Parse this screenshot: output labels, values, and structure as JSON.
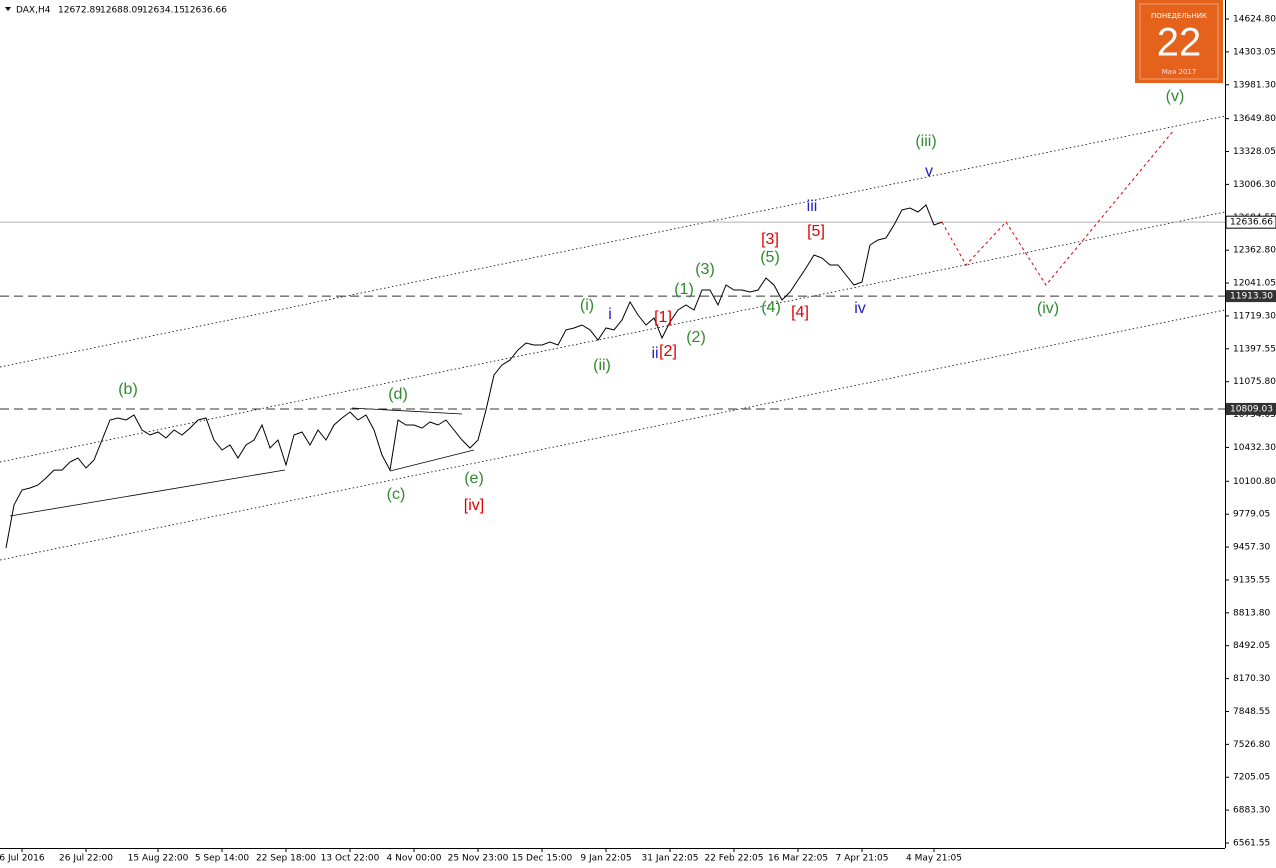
{
  "chart_data": {
    "type": "line",
    "header": {
      "symbol": "DAX,H4",
      "open": 12672.89,
      "high": 12688.09,
      "low": 12634.15,
      "close": 12636.66
    },
    "categories": [
      null,
      null,
      "6 Jul 2016",
      null,
      null,
      null,
      null,
      null,
      null,
      null,
      "26 Jul 22:00",
      null,
      null,
      null,
      null,
      null,
      null,
      null,
      null,
      "15 Aug 22:00",
      null,
      null,
      null,
      null,
      null,
      null,
      null,
      "5 Sep 14:00",
      null,
      null,
      null,
      null,
      null,
      null,
      null,
      "22 Sep 18:00",
      null,
      null,
      null,
      null,
      null,
      null,
      null,
      "13 Oct 22:00",
      null,
      null,
      null,
      null,
      null,
      null,
      null,
      "4 Nov 00:00",
      null,
      null,
      null,
      null,
      null,
      null,
      null,
      "25 Nov 23:00",
      null,
      null,
      null,
      null,
      null,
      null,
      null,
      "15 Dec 15:00",
      null,
      null,
      null,
      null,
      null,
      null,
      null,
      "9 Jan 22:05",
      null,
      null,
      null,
      null,
      null,
      null,
      null,
      "31 Jan 22:05",
      null,
      null,
      null,
      null,
      null,
      null,
      null,
      "22 Feb 22:05",
      null,
      null,
      null,
      null,
      null,
      null,
      null,
      "16 Mar 22:05",
      null,
      null,
      null,
      null,
      null,
      null,
      null,
      "7 Apr 21:05",
      null,
      null,
      null,
      null,
      null,
      null,
      null,
      null,
      "4 May 21:05",
      null
    ],
    "series": [
      {
        "color": "#000000",
        "values": [
          9448,
          9869,
          10016,
          10035,
          10065,
          10133,
          10211,
          10211,
          10290,
          10329,
          10231,
          10309,
          10505,
          10701,
          10720,
          10701,
          10750,
          10603,
          10554,
          10583,
          10525,
          10603,
          10554,
          10622,
          10701,
          10720,
          10505,
          10407,
          10456,
          10329,
          10456,
          10505,
          10652,
          10427,
          10505,
          10260,
          10554,
          10583,
          10456,
          10603,
          10505,
          10652,
          10720,
          10779,
          10701,
          10750,
          10603,
          10358,
          10211,
          10701,
          10652,
          10652,
          10622,
          10681,
          10652,
          10701,
          10603,
          10505,
          10427,
          10505,
          10799,
          11141,
          11239,
          11288,
          11386,
          11454,
          11435,
          11435,
          11464,
          11435,
          11582,
          11601,
          11630,
          11582,
          11484,
          11601,
          11582,
          11679,
          11856,
          11728,
          11630,
          11699,
          11503,
          11660,
          11777,
          11826,
          11777,
          11973,
          11973,
          11826,
          12022,
          11973,
          11973,
          11953,
          11973,
          12090,
          12022,
          11875,
          11953,
          12071,
          12188,
          12315,
          12286,
          12218,
          12218,
          12120,
          12022,
          12051,
          12413,
          12462,
          12482,
          12609,
          12757,
          12775,
          12736,
          12805,
          12609,
          12637
        ]
      }
    ],
    "forecast": {
      "color": "#e00000",
      "x": [
        117,
        120,
        125,
        130,
        146
      ],
      "values": [
        12637,
        12218,
        12638,
        12022,
        13539
      ]
    },
    "ylim": [
      6512.6,
      14810.7
    ],
    "yticks": [
      {
        "value": 14624.8,
        "label": "14624.80"
      },
      {
        "value": 14303.05,
        "label": "14303.05"
      },
      {
        "value": 13981.3,
        "label": "13981.30"
      },
      {
        "value": 13649.8,
        "label": "13649.80"
      },
      {
        "value": 13328.05,
        "label": "13328.05"
      },
      {
        "value": 13006.3,
        "label": "13006.30"
      },
      {
        "value": 12684.55,
        "label": "12684.55"
      },
      {
        "value": 12362.8,
        "label": "12362.80"
      },
      {
        "value": 12041.05,
        "label": "12041.05"
      },
      {
        "value": 11719.3,
        "label": "11719.30"
      },
      {
        "value": 11397.55,
        "label": "11397.55"
      },
      {
        "value": 11075.8,
        "label": "11075.80"
      },
      {
        "value": 10754.05,
        "label": "10754.05"
      },
      {
        "value": 10432.3,
        "label": "10432.30"
      },
      {
        "value": 10100.8,
        "label": "10100.80"
      },
      {
        "value": 9779.05,
        "label": "9779.05"
      },
      {
        "value": 9457.3,
        "label": "9457.30"
      },
      {
        "value": 9135.55,
        "label": "9135.55"
      },
      {
        "value": 8813.8,
        "label": "8813.80"
      },
      {
        "value": 8492.05,
        "label": "8492.05"
      },
      {
        "value": 8170.3,
        "label": "8170.30"
      },
      {
        "value": 7848.55,
        "label": "7848.55"
      },
      {
        "value": 7526.8,
        "label": "7526.80"
      },
      {
        "value": 7205.05,
        "label": "7205.05"
      },
      {
        "value": 6883.3,
        "label": "6883.30"
      },
      {
        "value": 6561.55,
        "label": "6561.55"
      }
    ],
    "price_lines": [
      {
        "price": 12636.66,
        "style": "solid"
      },
      {
        "price": {
          "value": 11913.3,
          "label": "11913.30"
        },
        "style": "dashed"
      },
      {
        "price": {
          "value": 10809.03,
          "label": "10809.03"
        },
        "style": "dashed"
      }
    ],
    "annotations": [
      {
        "text": "(b)",
        "color": "#2e8b2e"
      },
      {
        "text": "(d)",
        "color": "#2e8b2e"
      },
      {
        "text": "(c)",
        "color": "#2e8b2e"
      },
      {
        "text": "(e)",
        "color": "#2e8b2e"
      },
      {
        "text": "[iv]",
        "color": "#e00000"
      },
      {
        "text": "(i)",
        "color": "#2e8b2e"
      },
      {
        "text": "i",
        "color": "#2020c8"
      },
      {
        "text": "(ii)",
        "color": "#2e8b2e"
      },
      {
        "text": "[1]",
        "color": "#e00000"
      },
      {
        "text": "ii",
        "color": "#2020c8"
      },
      {
        "text": "[2]",
        "color": "#e00000"
      },
      {
        "text": "(2)",
        "color": "#2e8b2e"
      },
      {
        "text": "(1)",
        "color": "#2e8b2e"
      },
      {
        "text": "(3)",
        "color": "#2e8b2e"
      },
      {
        "text": "[3]",
        "color": "#e00000"
      },
      {
        "text": "(5)",
        "color": "#2e8b2e"
      },
      {
        "text": "(4)",
        "color": "#2e8b2e"
      },
      {
        "text": "[4]",
        "color": "#e00000"
      },
      {
        "text": "[5]",
        "color": "#e00000"
      },
      {
        "text": "iii",
        "color": "#2020c8"
      },
      {
        "text": "iv",
        "color": "#2020c8"
      },
      {
        "text": "v",
        "color": "#2020c8"
      },
      {
        "text": "(iii)",
        "color": "#2e8b2e"
      },
      {
        "text": "(v)",
        "color": "#2e8b2e"
      },
      {
        "text": "(iv)",
        "color": "#2e8b2e"
      }
    ],
    "widget": {
      "weekday": "ПОНЕДЕЛЬНИК",
      "day": "22",
      "month_year": "Мая 2017"
    }
  }
}
